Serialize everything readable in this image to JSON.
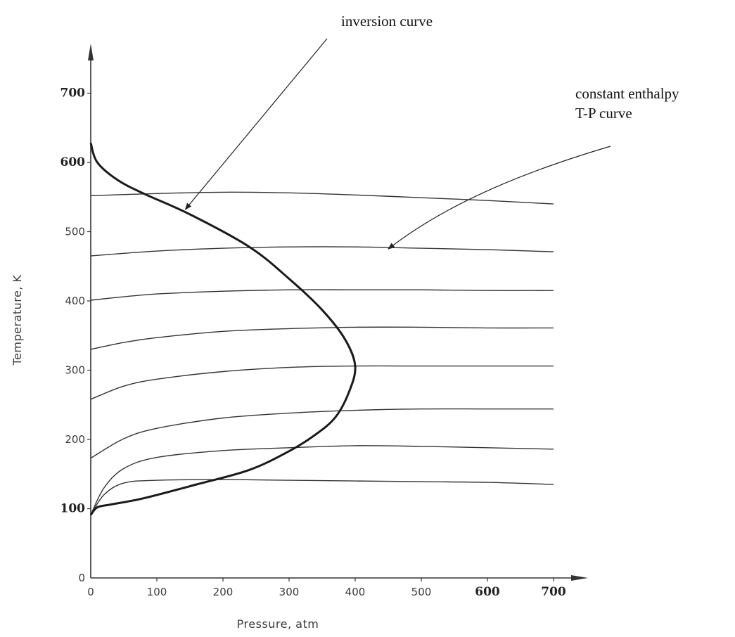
{
  "chart_data": {
    "type": "line",
    "title": "",
    "xlabel": "Pressure, atm",
    "ylabel": "Temperature,  K",
    "xlim": [
      0,
      700
    ],
    "ylim": [
      0,
      700
    ],
    "x_ticks": [
      {
        "value": 0,
        "label": "0"
      },
      {
        "value": 100,
        "label": "100"
      },
      {
        "value": 200,
        "label": "200"
      },
      {
        "value": 300,
        "label": "300"
      },
      {
        "value": 400,
        "label": "400"
      },
      {
        "value": 500,
        "label": "500"
      },
      {
        "value": 600,
        "label": "600",
        "handwritten": true
      },
      {
        "value": 700,
        "label": "700",
        "handwritten": true
      }
    ],
    "y_ticks": [
      {
        "value": 0,
        "label": "0"
      },
      {
        "value": 100,
        "label": "100",
        "handwritten": true
      },
      {
        "value": 200,
        "label": "200"
      },
      {
        "value": 300,
        "label": "300"
      },
      {
        "value": 400,
        "label": "400"
      },
      {
        "value": 500,
        "label": "500"
      },
      {
        "value": 600,
        "label": "600",
        "handwritten": true
      },
      {
        "value": 700,
        "label": "700",
        "handwritten": true
      }
    ],
    "grid": false,
    "annotations": [
      {
        "text": "inversion curve",
        "points_to": {
          "x": 143,
          "y": 532
        }
      },
      {
        "text": "constant enthalpy",
        "text2": "T-P curve",
        "points_to": {
          "x": 450,
          "y": 475
        }
      }
    ],
    "inversion_curve": {
      "x": [
        0,
        10,
        40,
        80,
        150,
        240,
        300,
        350,
        385,
        400,
        390,
        370,
        340,
        300,
        240,
        160,
        80,
        30,
        10,
        0
      ],
      "y": [
        628,
        600,
        575,
        555,
        525,
        478,
        432,
        387,
        344,
        305,
        267,
        232,
        207,
        183,
        156,
        135,
        115,
        106,
        102,
        91
      ]
    },
    "series": [
      {
        "x": [
          0,
          100,
          200,
          300,
          400,
          500,
          600,
          700
        ],
        "y": [
          552,
          555,
          557,
          556,
          553,
          549,
          545,
          540
        ]
      },
      {
        "x": [
          0,
          100,
          200,
          300,
          400,
          500,
          600,
          700
        ],
        "y": [
          465,
          472,
          476,
          478,
          478,
          476,
          474,
          471
        ]
      },
      {
        "x": [
          0,
          50,
          100,
          200,
          300,
          400,
          500,
          600,
          700
        ],
        "y": [
          401,
          406,
          410,
          414,
          416,
          416,
          416,
          415,
          415
        ]
      },
      {
        "x": [
          0,
          50,
          100,
          200,
          300,
          400,
          500,
          600,
          700
        ],
        "y": [
          330,
          340,
          347,
          356,
          360,
          362,
          362,
          361,
          361
        ]
      },
      {
        "x": [
          0,
          50,
          100,
          200,
          300,
          400,
          500,
          600,
          700
        ],
        "y": [
          258,
          277,
          287,
          298,
          304,
          306,
          306,
          306,
          306
        ]
      },
      {
        "x": [
          0,
          50,
          100,
          200,
          300,
          400,
          500,
          600,
          700
        ],
        "y": [
          173,
          201,
          216,
          231,
          238,
          242,
          244,
          244,
          244
        ]
      },
      {
        "x": [
          0,
          20,
          50,
          100,
          200,
          300,
          400,
          500,
          600,
          700
        ],
        "y": [
          91,
          130,
          158,
          174,
          184,
          188,
          191,
          190,
          188,
          186
        ]
      },
      {
        "x": [
          0,
          20,
          50,
          100,
          200,
          300,
          400,
          500,
          600,
          700
        ],
        "y": [
          91,
          120,
          137,
          141,
          142,
          141,
          140,
          139,
          138,
          135
        ]
      }
    ]
  }
}
